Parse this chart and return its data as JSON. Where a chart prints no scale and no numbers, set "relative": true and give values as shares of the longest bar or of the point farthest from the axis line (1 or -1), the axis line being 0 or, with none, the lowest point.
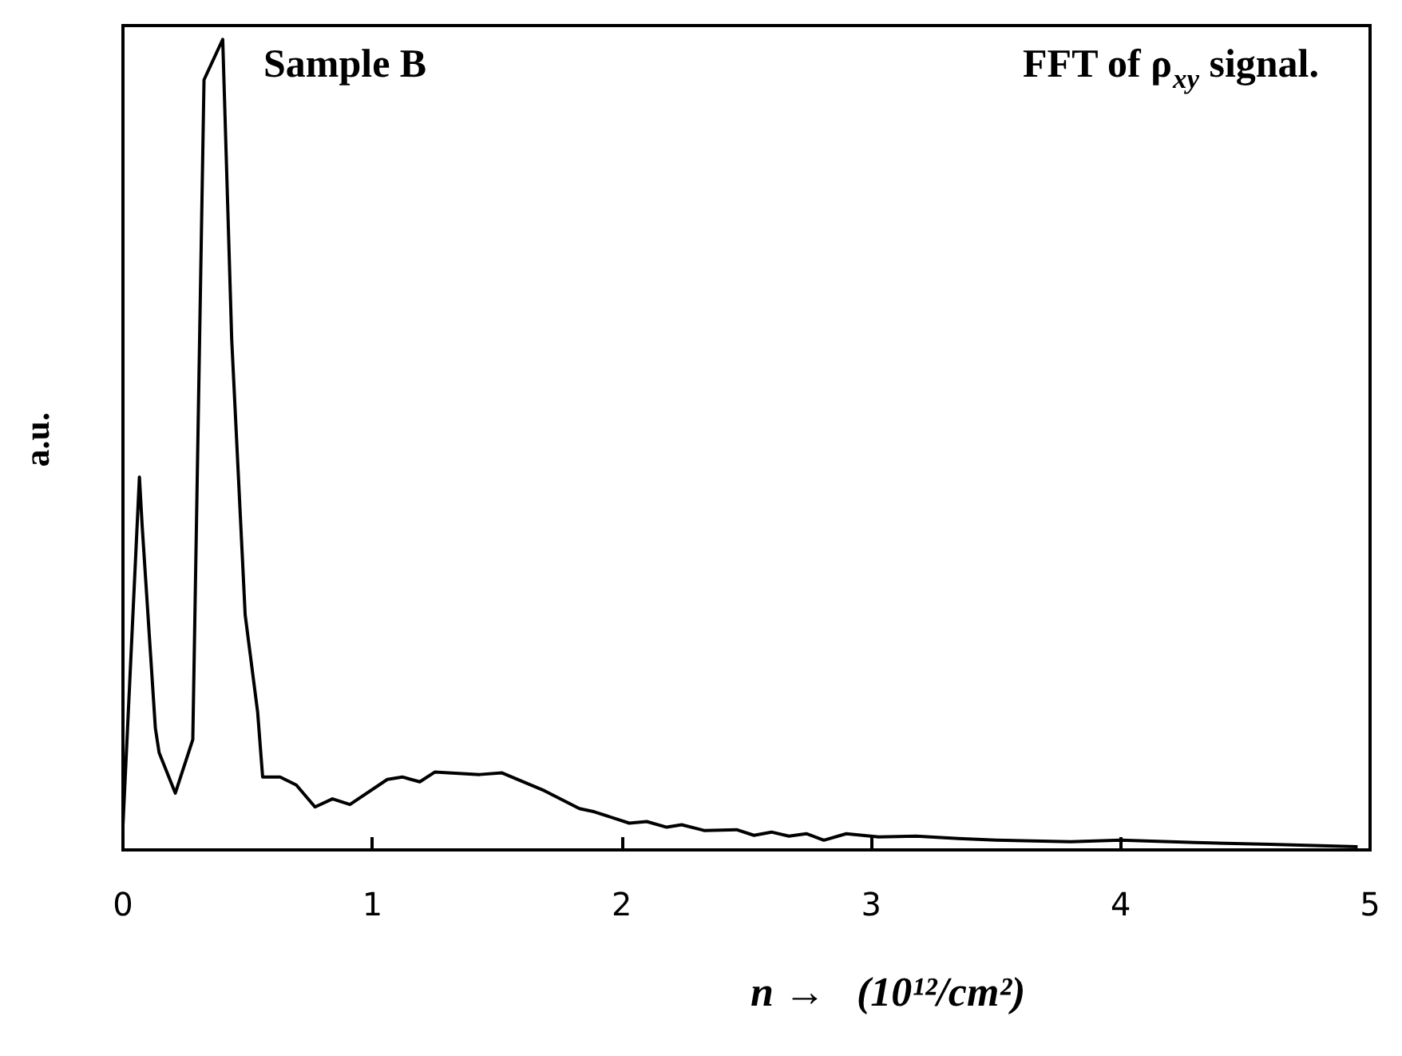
{
  "chart_data": {
    "type": "line",
    "relative": true,
    "xlabel": "n →   (10¹²/cm²)",
    "ylabel": "a.u.",
    "annotations": [
      "Sample B",
      "FFT of ρ$_{xy}$ signal."
    ],
    "xlim": [
      0,
      5
    ],
    "xticks": [
      0,
      1,
      2,
      3,
      4,
      5
    ],
    "marker": "none",
    "line_style": "solid",
    "series": [
      {
        "color": "#000000",
        "x": [
          0.0,
          0.066,
          0.077,
          0.13,
          0.145,
          0.21,
          0.28,
          0.325,
          0.4,
          0.436,
          0.49,
          0.54,
          0.56,
          0.63,
          0.695,
          0.77,
          0.84,
          0.91,
          1.06,
          1.12,
          1.19,
          1.25,
          1.43,
          1.52,
          1.69,
          1.83,
          1.89,
          2.03,
          2.1,
          2.18,
          2.24,
          2.33,
          2.46,
          2.53,
          2.6,
          2.67,
          2.74,
          2.81,
          2.9,
          3.03,
          3.18,
          3.35,
          3.5,
          3.8,
          4.0,
          4.3,
          4.6,
          4.95
        ],
        "values": [
          0.03,
          0.46,
          0.4,
          0.15,
          0.12,
          0.07,
          0.136,
          0.95,
          1.0,
          0.63,
          0.29,
          0.17,
          0.09,
          0.09,
          0.08,
          0.053,
          0.063,
          0.056,
          0.087,
          0.09,
          0.084,
          0.096,
          0.093,
          0.095,
          0.073,
          0.051,
          0.047,
          0.033,
          0.035,
          0.028,
          0.031,
          0.024,
          0.025,
          0.018,
          0.022,
          0.017,
          0.02,
          0.012,
          0.02,
          0.016,
          0.017,
          0.014,
          0.012,
          0.01,
          0.012,
          0.009,
          0.007,
          0.004
        ]
      }
    ]
  }
}
